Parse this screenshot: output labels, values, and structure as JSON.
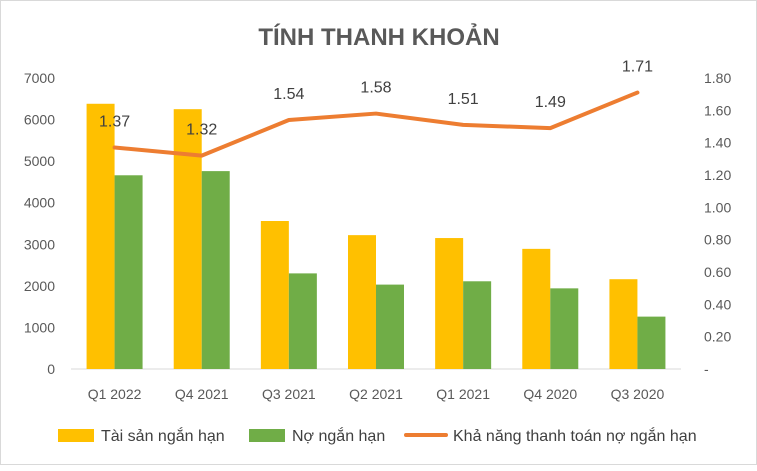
{
  "chart_data": {
    "type": "bar",
    "title": "TÍNH THANH KHOẢN",
    "categories": [
      "Q1 2022",
      "Q4 2021",
      "Q3 2021",
      "Q2 2021",
      "Q1 2021",
      "Q4 2020",
      "Q3 2020"
    ],
    "series": [
      {
        "name": "Tài sản ngắn hạn",
        "type": "bar",
        "axis": "left",
        "color": "#FFC000",
        "values": [
          6380,
          6250,
          3560,
          3220,
          3150,
          2890,
          2160
        ]
      },
      {
        "name": "Nợ ngắn hạn",
        "type": "bar",
        "axis": "left",
        "color": "#70AD47",
        "values": [
          4660,
          4760,
          2300,
          2030,
          2110,
          1940,
          1260
        ]
      },
      {
        "name": "Khả năng thanh toán nợ ngắn hạn",
        "type": "line",
        "axis": "right",
        "color": "#ED7D31",
        "values": [
          1.37,
          1.32,
          1.54,
          1.58,
          1.51,
          1.49,
          1.71
        ],
        "labels": [
          "1.37",
          "1.32",
          "1.54",
          "1.58",
          "1.51",
          "1.49",
          "1.71"
        ]
      }
    ],
    "y_left": {
      "min": 0,
      "max": 7000,
      "step": 1000,
      "ticks": [
        "0",
        "1000",
        "2000",
        "3000",
        "4000",
        "5000",
        "6000",
        "7000"
      ]
    },
    "y_right": {
      "min": 0,
      "max": 1.8,
      "step": 0.2,
      "ticks": [
        "-",
        "0.20",
        "0.40",
        "0.60",
        "0.80",
        "1.00",
        "1.20",
        "1.40",
        "1.60",
        "1.80"
      ]
    },
    "grid": false,
    "legend": "bottom"
  }
}
